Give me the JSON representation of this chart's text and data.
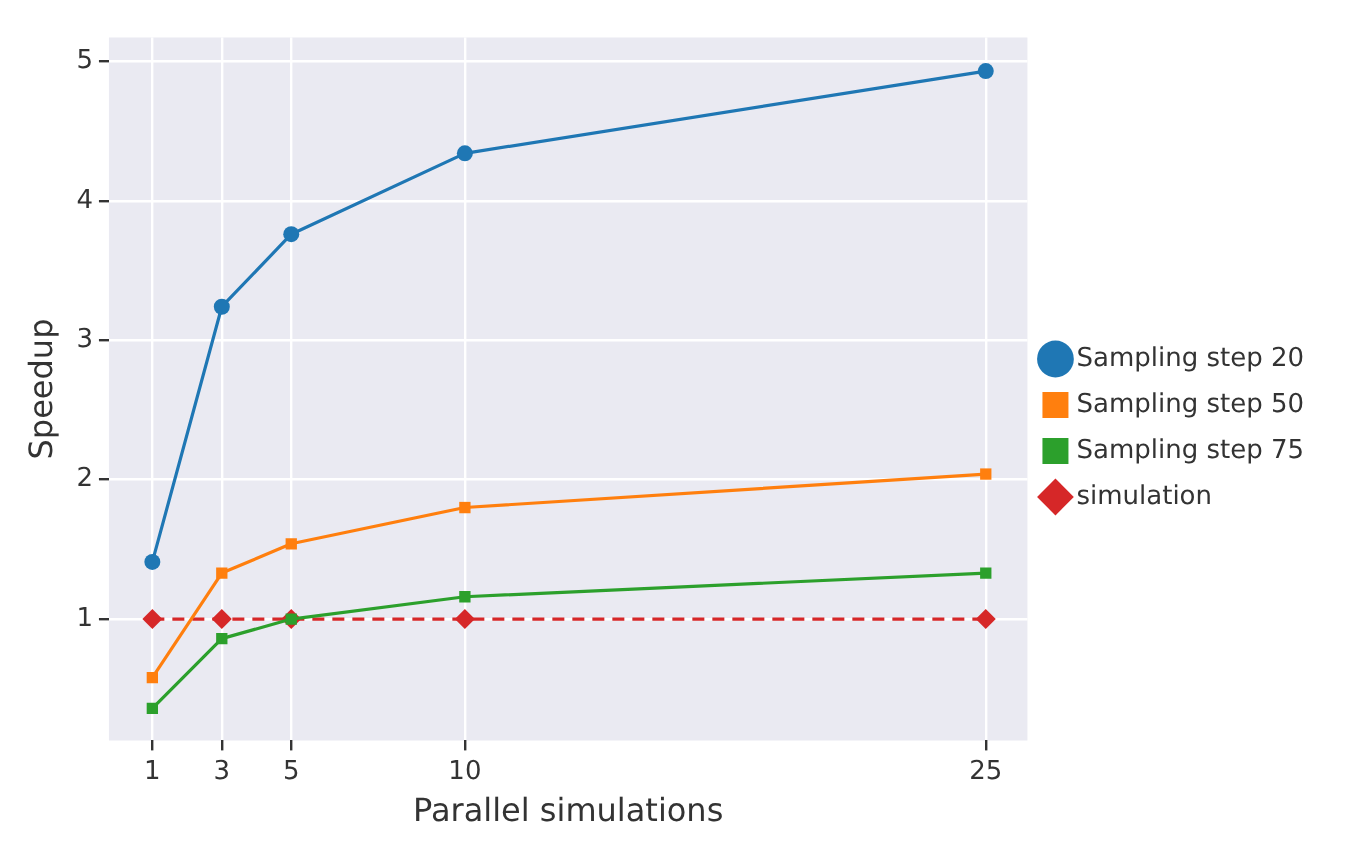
{
  "chart_data": {
    "type": "line",
    "xlabel": "Parallel simulations",
    "ylabel": "Speedup",
    "x": [
      1,
      3,
      5,
      10,
      25
    ],
    "series": [
      {
        "name": "Sampling step 20",
        "color": "#1f77b4",
        "marker": "circle",
        "line_style": "solid",
        "values": [
          1.41,
          3.24,
          3.76,
          4.34,
          4.93
        ]
      },
      {
        "name": "Sampling step 50",
        "color": "#ff7f0e",
        "marker": "square",
        "line_style": "solid",
        "values": [
          0.58,
          1.33,
          1.54,
          1.8,
          2.04
        ]
      },
      {
        "name": "Sampling step 75",
        "color": "#2ca02c",
        "marker": "square",
        "line_style": "solid",
        "values": [
          0.36,
          0.86,
          1.0,
          1.16,
          1.33
        ]
      },
      {
        "name": "simulation",
        "color": "#d62728",
        "marker": "diamond",
        "line_style": "dashed",
        "values": [
          1,
          1,
          1,
          1,
          1
        ]
      }
    ],
    "xlim": [
      -0.25,
      26.2
    ],
    "xticks": [
      1,
      3,
      5,
      10,
      25
    ],
    "ylim": [
      0.13,
      5.17
    ],
    "yticks": [
      1,
      2,
      3,
      4,
      5
    ],
    "grid": true,
    "legend": "right"
  }
}
